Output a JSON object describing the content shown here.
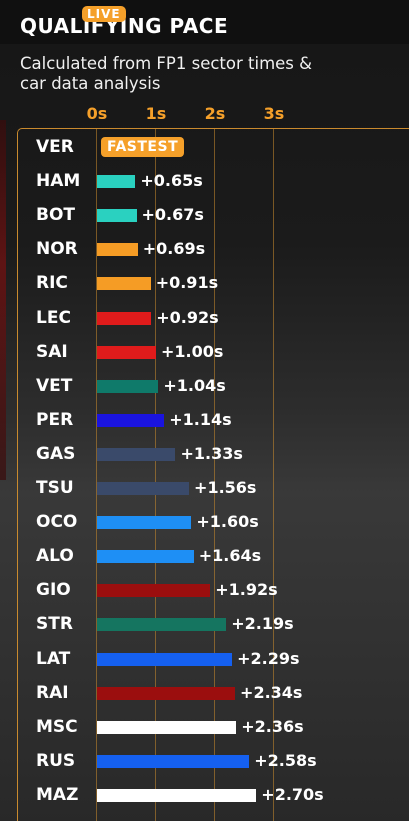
{
  "header": {
    "title": "QUALIFYING PACE",
    "live_badge": "LIVE"
  },
  "subtitle": "Calculated from FP1 sector times & car data analysis",
  "axis": {
    "ticks": [
      "0s",
      "1s",
      "2s",
      "3s"
    ],
    "tick_values": [
      0,
      1,
      2,
      3
    ]
  },
  "fastest_badge": "FASTEST",
  "drivers": [
    {
      "code": "VER",
      "gap": 0,
      "gap_label": "",
      "color": "#f5a02a",
      "fastest": true
    },
    {
      "code": "HAM",
      "gap": 0.65,
      "gap_label": "+0.65s",
      "color": "#2ad1c0"
    },
    {
      "code": "BOT",
      "gap": 0.67,
      "gap_label": "+0.67s",
      "color": "#2ad1c0"
    },
    {
      "code": "NOR",
      "gap": 0.69,
      "gap_label": "+0.69s",
      "color": "#f59c25"
    },
    {
      "code": "RIC",
      "gap": 0.91,
      "gap_label": "+0.91s",
      "color": "#f59c25"
    },
    {
      "code": "LEC",
      "gap": 0.92,
      "gap_label": "+0.92s",
      "color": "#e01b1b"
    },
    {
      "code": "SAI",
      "gap": 1.0,
      "gap_label": "+1.00s",
      "color": "#e01b1b"
    },
    {
      "code": "VET",
      "gap": 1.04,
      "gap_label": "+1.04s",
      "color": "#0f7a6a"
    },
    {
      "code": "PER",
      "gap": 1.14,
      "gap_label": "+1.14s",
      "color": "#1a14e0"
    },
    {
      "code": "GAS",
      "gap": 1.33,
      "gap_label": "+1.33s",
      "color": "#3a4a6a"
    },
    {
      "code": "TSU",
      "gap": 1.56,
      "gap_label": "+1.56s",
      "color": "#3a4a6a"
    },
    {
      "code": "OCO",
      "gap": 1.6,
      "gap_label": "+1.60s",
      "color": "#1e8ff5"
    },
    {
      "code": "ALO",
      "gap": 1.64,
      "gap_label": "+1.64s",
      "color": "#1e8ff5"
    },
    {
      "code": "GIO",
      "gap": 1.92,
      "gap_label": "+1.92s",
      "color": "#9b0e0e"
    },
    {
      "code": "STR",
      "gap": 2.19,
      "gap_label": "+2.19s",
      "color": "#157560"
    },
    {
      "code": "LAT",
      "gap": 2.29,
      "gap_label": "+2.29s",
      "color": "#1560f0"
    },
    {
      "code": "RAI",
      "gap": 2.34,
      "gap_label": "+2.34s",
      "color": "#9b0e0e"
    },
    {
      "code": "MSC",
      "gap": 2.36,
      "gap_label": "+2.36s",
      "color": "#ffffff"
    },
    {
      "code": "RUS",
      "gap": 2.58,
      "gap_label": "+2.58s",
      "color": "#1560f0"
    },
    {
      "code": "MAZ",
      "gap": 2.7,
      "gap_label": "+2.70s",
      "color": "#ffffff"
    }
  ]
}
